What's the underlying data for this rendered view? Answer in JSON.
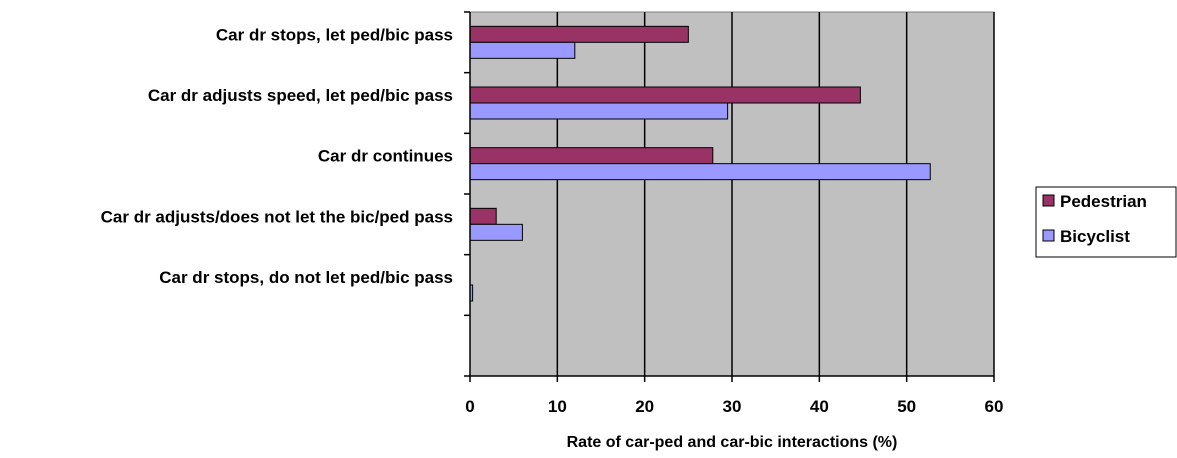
{
  "chart_data": {
    "type": "bar",
    "orientation": "horizontal",
    "categories": [
      "Car dr stops, let ped/bic pass",
      "Car dr adjusts speed, let ped/bic pass",
      "Car dr continues",
      "Car dr adjusts/does not let the bic/ped pass",
      "Car dr stops, do not let ped/bic pass",
      ""
    ],
    "series": [
      {
        "name": "Pedestrian",
        "color": "#993366",
        "values": [
          25.0,
          44.7,
          27.8,
          3.0,
          0.0,
          0
        ]
      },
      {
        "name": "Bicyclist",
        "color": "#9999ff",
        "values": [
          12.0,
          29.5,
          52.7,
          6.0,
          0.3,
          0
        ]
      }
    ],
    "xlabel": "Rate of car-ped and car-bic interactions (%)",
    "xlim": [
      0,
      60
    ],
    "xticks": [
      "0",
      "10",
      "20",
      "30",
      "40",
      "50",
      "60"
    ],
    "grid": true,
    "plot_background": "#c0c0c0",
    "legend_position": "right"
  }
}
